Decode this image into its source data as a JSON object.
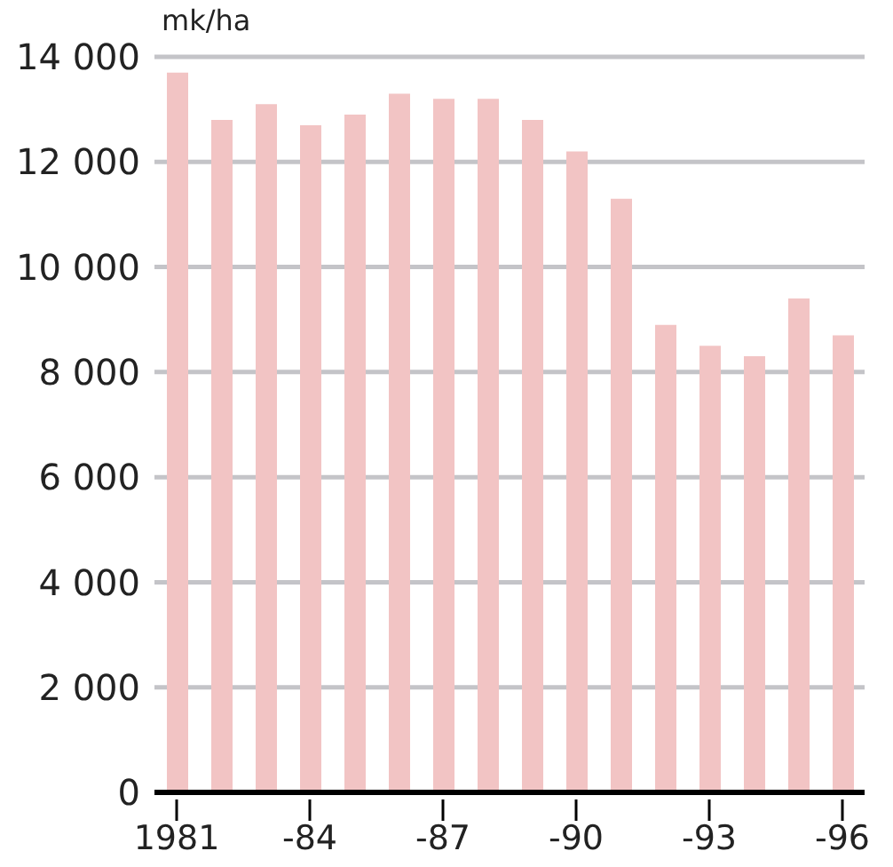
{
  "chart_data": {
    "type": "bar",
    "ylabel": "mk/ha",
    "categories": [
      "1981",
      null,
      null,
      "-84",
      null,
      null,
      "-87",
      null,
      null,
      "-90",
      null,
      null,
      "-93",
      null,
      null,
      "-96"
    ],
    "values": [
      13700,
      12800,
      13100,
      12700,
      12900,
      13300,
      13200,
      13200,
      12800,
      12200,
      11300,
      8900,
      8500,
      8300,
      9400,
      8700
    ],
    "color": "#f2c4c4",
    "ylim": [
      0,
      14000
    ],
    "yticks": [
      0,
      {
        "value": 2000,
        "label": "2 000"
      },
      {
        "value": 4000,
        "label": "4 000"
      },
      {
        "value": 6000,
        "label": "6 000"
      },
      {
        "value": 8000,
        "label": "8 000"
      },
      {
        "value": 10000,
        "label": "10 000"
      },
      {
        "value": 12000,
        "label": "12 000"
      },
      {
        "value": 14000,
        "label": "14 000"
      }
    ],
    "grid": "y"
  }
}
